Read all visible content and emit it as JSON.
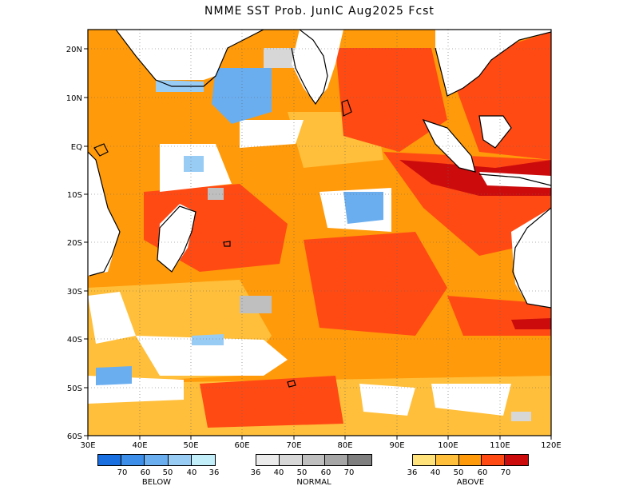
{
  "title": "NMME SST Prob. JunIC  Aug2025 Fcst",
  "lat_labels": [
    "20N",
    "10N",
    "EQ",
    "10S",
    "20S",
    "30S",
    "40S",
    "50S",
    "60S"
  ],
  "lon_labels": [
    "30E",
    "40E",
    "50E",
    "60E",
    "70E",
    "80E",
    "90E",
    "100E",
    "110E",
    "120E"
  ],
  "legend": {
    "below": {
      "label": "BELOW",
      "colors": [
        "#1a6fe0",
        "#3d8ee8",
        "#6aaef0",
        "#98ccf5",
        "#c2eefa"
      ],
      "ticks": [
        "70",
        "60",
        "50",
        "40",
        "36"
      ]
    },
    "normal": {
      "label": "NORMAL",
      "colors": [
        "#ebebeb",
        "#d7d7d7",
        "#bfbfbf",
        "#a6a6a6",
        "#7f7f7f"
      ],
      "ticks": [
        "36",
        "40",
        "50",
        "60",
        "70"
      ]
    },
    "above": {
      "label": "ABOVE",
      "colors": [
        "#ffe27a",
        "#ffbf3a",
        "#ff9a0a",
        "#ff4a14",
        "#cc0c0c"
      ],
      "ticks": [
        "36",
        "40",
        "50",
        "60",
        "70"
      ]
    }
  }
}
